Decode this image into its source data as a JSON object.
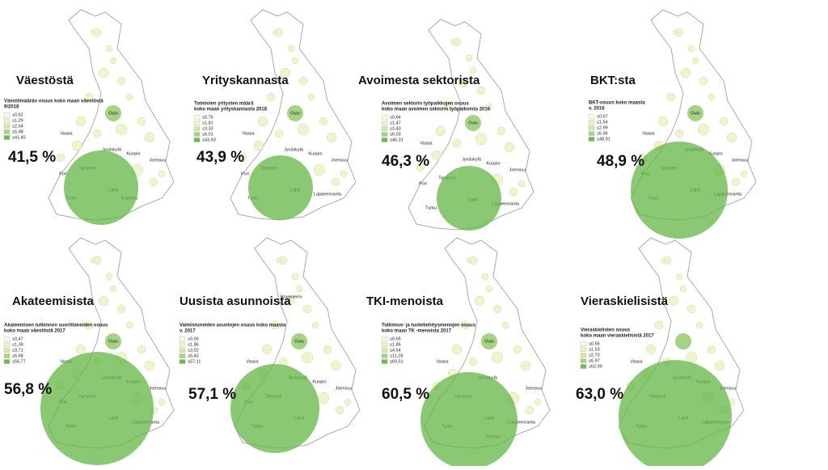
{
  "panels": [
    {
      "title": "Väestöstä",
      "share": "41,5 %",
      "legend_title": [
        "Väestömäärän osuus koko maan väestöstä",
        "9/2018"
      ],
      "legend_items": [
        "≤0,62",
        "≤1,29",
        "≤2,54",
        "≤5,98",
        "≤41,45"
      ],
      "cities": [
        "Oulu",
        "Vaasa",
        "Jyväskylä",
        "Kuopio",
        "Joensuu",
        "Pori",
        "Tampere",
        "Lahti",
        "Turku",
        "Kouvola"
      ]
    },
    {
      "title": "Yrityskannasta",
      "share": "43,9 %",
      "legend_title": [
        "Toimivien yritysten määrä",
        "koko maan yrityskannasta 2018"
      ],
      "legend_items": [
        "≤0,76",
        "≤1,81",
        "≤3,33",
        "≤6,01",
        "≤43,93"
      ],
      "cities": [
        "Oulu",
        "Vaasa",
        "Jyväskylä",
        "Kuopio",
        "Joensuu",
        "Pori",
        "Tampere",
        "Lahti",
        "Turku",
        "Lappeenranta"
      ]
    },
    {
      "title": "Avoimesta sektorista",
      "share": "46,3 %",
      "legend_title": [
        "Avoimen sektorin työpaikkojen osuus",
        "koko maan avoimen sektorin työpaikoista 2016"
      ],
      "legend_items": [
        "≤0,64",
        "≤1,47",
        "≤3,43",
        "≤6,03",
        "≤46,31"
      ],
      "cities": [
        "Oulu",
        "Vaasa",
        "Jyväskylä",
        "Kuopio",
        "Joensuu",
        "Pori",
        "Tampere",
        "Lahti",
        "Turku",
        "Lappeenranta"
      ]
    },
    {
      "title": "BKT:sta",
      "share": "48,9 %",
      "legend_title": [
        "BKT-osuus koko maasta",
        "v. 2016"
      ],
      "legend_items": [
        "≤0,67",
        "≤1,54",
        "≤2,99",
        "≤5,96",
        "≤48,91"
      ],
      "cities": [
        "Oulu",
        "Vaasa",
        "Jyväskylä",
        "Kuopio",
        "Joensuu",
        "Pori",
        "Tampere",
        "Lahti",
        "Turku",
        "Lappeenranta"
      ]
    },
    {
      "title": "Akateemisista",
      "share": "56,8 %",
      "legend_title": [
        "Akateemisen tutkinnon suorittaneiden osuus",
        "koko maan väestöstä 2017"
      ],
      "legend_items": [
        "≤0,47",
        "≤1,39",
        "≤3,71",
        "≤6,68",
        "≤56,77"
      ],
      "cities": [
        "Oulu",
        "Vaasa",
        "Jyväskylä",
        "Kuopio",
        "Joensuu",
        "Pori",
        "Tampere",
        "Lahti",
        "Turku",
        "Lappeenranta"
      ]
    },
    {
      "title": "Uusista asunnoista",
      "share": "57,1 %",
      "legend_title": [
        "Valmistuneiden asuntojen osuus koko maasta",
        "v. 2017"
      ],
      "legend_items": [
        "≤0,59",
        "≤1,86",
        "≤3,52",
        "≤6,43",
        "≤57,11"
      ],
      "cities": [
        "Rovaniemi",
        "Oulu",
        "Vaasa",
        "Jyväskylä",
        "Kuopio",
        "Joensuu",
        "Pori",
        "Tampere",
        "Lahti",
        "Turku"
      ]
    },
    {
      "title": "TKI-menoista",
      "share": "60,5 %",
      "legend_title": [
        "Tutkimus- ja tuotekehitysmenojen osuus",
        "koko maan TK -menoista 2017"
      ],
      "legend_items": [
        "≤0,65",
        "≤1,85",
        "≤4,64",
        "≤11,28",
        "≤60,51"
      ],
      "cities": [
        "Oulu",
        "Vaasa",
        "Jyväskylä",
        "Joensuu",
        "Tampere",
        "Lahti",
        "Turku",
        "Lappeenranta",
        "Porvoo"
      ]
    },
    {
      "title": "Vieraskielisistä",
      "share": "63,0 %",
      "legend_title": [
        "Vieraskielisten osuus",
        "koko maan vieraskielisistä 2017"
      ],
      "legend_items": [
        "≤0,56",
        "≤1,53",
        "≤2,70",
        "≤6,97",
        "≤62,99"
      ],
      "cities": [
        "Vaasa",
        "Jyväskylä",
        "Kuopio",
        "Joensuu",
        "Tampere",
        "Lahti",
        "Turku",
        "Lappeenranta"
      ]
    }
  ]
}
